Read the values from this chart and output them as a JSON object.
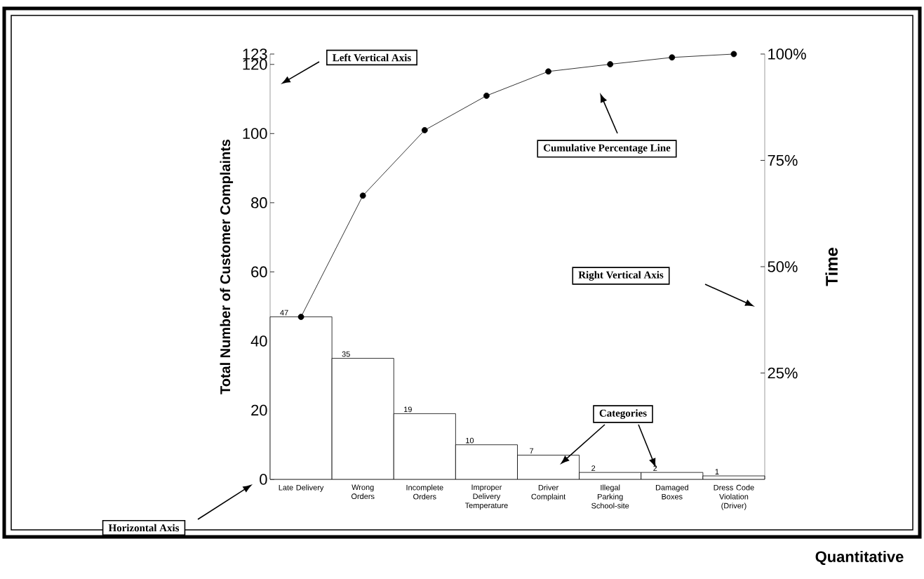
{
  "chart_data": {
    "type": "bar",
    "ylabel": "Total Number of Customer Complaints",
    "y2label": "Time",
    "categories": [
      "Late Delivery",
      "Wrong Orders",
      "Incomplete Orders",
      "Improper Delivery Temperature",
      "Driver Complaint",
      "Illegal Parking School-site",
      "Damaged Boxes",
      "Dress Code Violation (Driver)"
    ],
    "series": [
      {
        "color": "#ffffff",
        "values": [
          47,
          35,
          19,
          10,
          7,
          2,
          2,
          1
        ],
        "value_labels": [
          "47",
          "35",
          "19",
          "10",
          "7",
          "2",
          "2",
          "1"
        ]
      },
      {
        "type": "line",
        "axis": "y2",
        "color": "#000000",
        "marker": "circle",
        "line_style": "solid",
        "x": [
          "Late Delivery",
          "Wrong Orders",
          "Incomplete Orders",
          "Improper Delivery Temperature",
          "Driver Complaint",
          "Illegal Parking School-site",
          "Damaged Boxes",
          "Dress Code Violation (Driver)"
        ],
        "values": [
          38.2,
          66.7,
          82.1,
          90.2,
          95.9,
          97.6,
          99.2,
          100
        ]
      }
    ],
    "ylim": [
      0,
      123
    ],
    "yticks": [
      0,
      20,
      40,
      60,
      80,
      100,
      120,
      123
    ],
    "y2lim": [
      0,
      100
    ],
    "y2ticks": [
      {
        "value": 25,
        "label": "25%"
      },
      {
        "value": 50,
        "label": "50%"
      },
      {
        "value": 75,
        "label": "75%"
      },
      {
        "value": 100,
        "label": "100%"
      }
    ],
    "annotations": [
      "Left Vertical Axis",
      "Cumulative Percentage Line",
      "Right Vertical Axis",
      "Categories",
      "Horizontal Axis",
      "Quantitative"
    ]
  }
}
